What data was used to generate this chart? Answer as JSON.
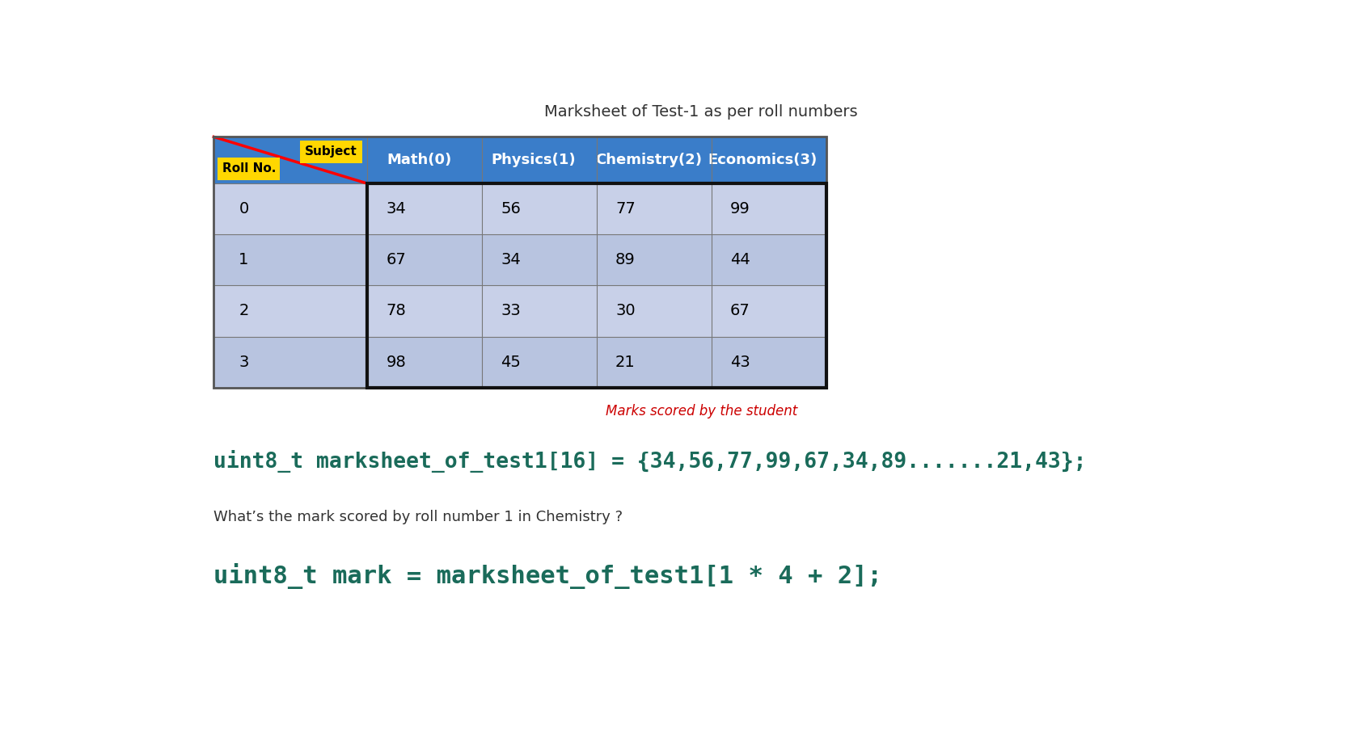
{
  "title": "Marksheet of Test-1 as per roll numbers",
  "title_fontsize": 14,
  "title_color": "#333333",
  "header_labels": [
    "Math(0)",
    "Physics(1)",
    "Chemistry(2)",
    "Economics(3)"
  ],
  "row_labels": [
    "0",
    "1",
    "2",
    "3"
  ],
  "corner_label_top": "Subject",
  "corner_label_bottom": "Roll No.",
  "table_data": [
    [
      34,
      56,
      77,
      99
    ],
    [
      67,
      34,
      89,
      44
    ],
    [
      78,
      33,
      30,
      67
    ],
    [
      98,
      45,
      21,
      43
    ]
  ],
  "header_bg": "#3A7DC9",
  "header_text_color": "#FFFFFF",
  "row_bg_light": "#C8D0E8",
  "row_bg_dark": "#B8C4E0",
  "corner_label_bg": "#FFD700",
  "corner_label_text": "#000000",
  "data_text_color": "#000000",
  "annotation_text": "Marks scored by the student",
  "annotation_color": "#CC0000",
  "annotation_fontsize": 12,
  "code_line1": "uint8_t marksheet_of_test1[16] = {34,56,77,99,67,34,89.......21,43};",
  "code_line1_color": "#1A6B5A",
  "code_line1_fontsize": 19,
  "question_text": "What’s the mark scored by roll number 1 in Chemistry ?",
  "question_fontsize": 13,
  "question_color": "#333333",
  "code_line2": "uint8_t mark = marksheet_of_test1[1 * 4 + 2];",
  "code_line2_color": "#1A6B5A",
  "code_line2_fontsize": 22,
  "bg_color": "#FFFFFF"
}
